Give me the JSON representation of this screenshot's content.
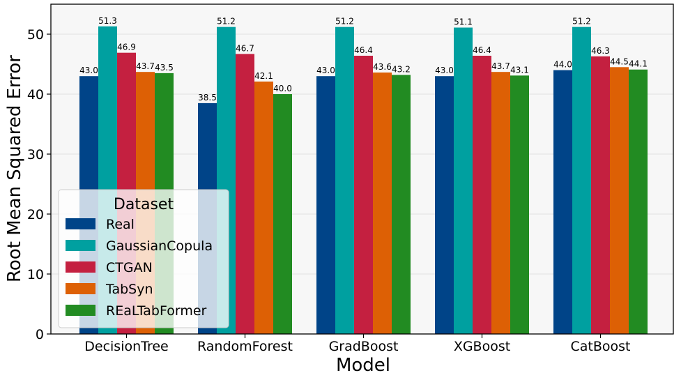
{
  "chart_data": {
    "type": "bar",
    "xlabel": "Model",
    "ylabel": "Root Mean Squared Error",
    "ylim": [
      0,
      55
    ],
    "yticks": [
      0,
      10,
      20,
      30,
      40,
      50
    ],
    "grid": "horizontal",
    "categories": [
      "DecisionTree",
      "RandomForest",
      "GradBoost",
      "XGBoost",
      "CatBoost"
    ],
    "legend": {
      "title": "Dataset",
      "placement": "lower-left"
    },
    "series": [
      {
        "name": "Real",
        "color": "#004488",
        "values": [
          43.0,
          38.5,
          43.0,
          43.0,
          44.0
        ],
        "labels": [
          "43.0",
          "38.5",
          "43.0",
          "43.0",
          "44.0"
        ]
      },
      {
        "name": "GaussianCopula",
        "color": "#00a0a0",
        "values": [
          51.3,
          51.2,
          51.2,
          51.1,
          51.2
        ],
        "labels": [
          "51.3",
          "51.2",
          "51.2",
          "51.1",
          "51.2"
        ]
      },
      {
        "name": "CTGAN",
        "color": "#c42040",
        "values": [
          46.9,
          46.7,
          46.4,
          46.4,
          46.3
        ],
        "labels": [
          "46.9",
          "46.7",
          "46.4",
          "46.4",
          "46.3"
        ]
      },
      {
        "name": "TabSyn",
        "color": "#dd6005",
        "values": [
          43.7,
          42.1,
          43.6,
          43.7,
          44.5
        ],
        "labels": [
          "43.7",
          "42.1",
          "43.6",
          "43.7",
          "44.5"
        ]
      },
      {
        "name": "REaLTabFormer",
        "color": "#228b22",
        "values": [
          43.5,
          40.0,
          43.2,
          43.1,
          44.1
        ],
        "labels": [
          "43.5",
          "40.0",
          "43.2",
          "43.1",
          "44.1"
        ]
      }
    ]
  }
}
